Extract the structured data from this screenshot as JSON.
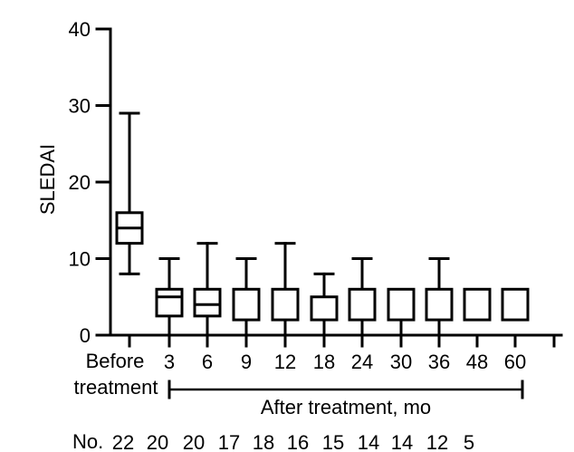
{
  "chart_data": {
    "type": "boxplot",
    "title": "",
    "ylabel": "SLEDAI",
    "xlabel": "After treatment, mo",
    "ylim": [
      0,
      40
    ],
    "y_ticks": [
      0,
      10,
      20,
      30,
      40
    ],
    "grid": false,
    "legend": "none",
    "categories": [
      "Before treatment",
      "3",
      "6",
      "9",
      "12",
      "18",
      "24",
      "30",
      "36",
      "48",
      "60"
    ],
    "boxes": [
      {
        "category": "Before treatment",
        "whisker_low": 8,
        "q1": 12,
        "median": 14,
        "q3": 16,
        "whisker_high": 29
      },
      {
        "category": "3",
        "whisker_low": 0,
        "q1": 2.5,
        "median": 5,
        "q3": 6,
        "whisker_high": 10
      },
      {
        "category": "6",
        "whisker_low": 0,
        "q1": 2.5,
        "median": 4,
        "q3": 6,
        "whisker_high": 12
      },
      {
        "category": "9",
        "whisker_low": 0,
        "q1": 2,
        "median": null,
        "q3": 6,
        "whisker_high": 10
      },
      {
        "category": "12",
        "whisker_low": 0,
        "q1": 2,
        "median": null,
        "q3": 6,
        "whisker_high": 12
      },
      {
        "category": "18",
        "whisker_low": 0,
        "q1": 2,
        "median": null,
        "q3": 5,
        "whisker_high": 8
      },
      {
        "category": "24",
        "whisker_low": 0,
        "q1": 2,
        "median": null,
        "q3": 6,
        "whisker_high": 10
      },
      {
        "category": "30",
        "whisker_low": 0,
        "q1": 2,
        "median": null,
        "q3": 6,
        "whisker_high": null
      },
      {
        "category": "36",
        "whisker_low": 0,
        "q1": 2,
        "median": null,
        "q3": 6,
        "whisker_high": 10
      },
      {
        "category": "48",
        "whisker_low": null,
        "q1": 2,
        "median": null,
        "q3": 6,
        "whisker_high": null
      },
      {
        "category": "60",
        "whisker_low": null,
        "q1": 2,
        "median": null,
        "q3": 6,
        "whisker_high": null
      }
    ],
    "n_row": {
      "label": "No.",
      "values": [
        22,
        20,
        20,
        17,
        18,
        16,
        15,
        14,
        14,
        12,
        5
      ]
    },
    "labels": {
      "ylabel": "SLEDAI",
      "before_line1": "Before",
      "before_line2": "treatment",
      "after_bracket": "After treatment, mo",
      "n_row": "No."
    },
    "colors": {
      "ink": "#000000",
      "background": "#ffffff"
    }
  }
}
